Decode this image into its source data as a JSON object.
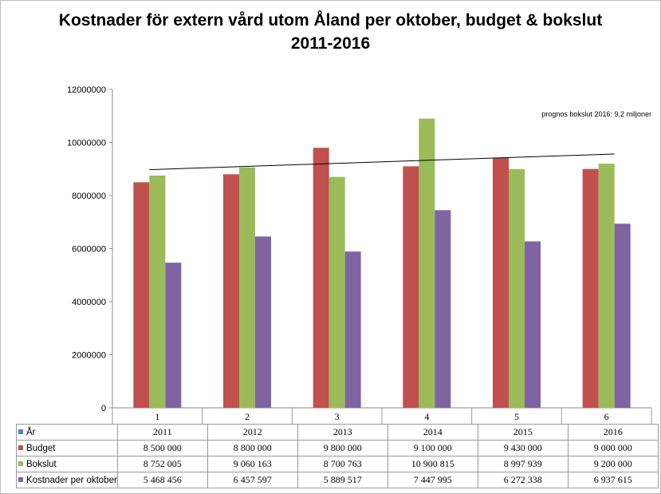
{
  "chart_data": {
    "type": "bar",
    "title_line1": "Kostnader för extern vård utom Åland per oktober, budget & bokslut",
    "title_line2": "2011-2016",
    "categories": [
      "1",
      "2",
      "3",
      "4",
      "5",
      "6"
    ],
    "years": [
      "2011",
      "2012",
      "2013",
      "2014",
      "2015",
      "2016"
    ],
    "year_series_name": "År",
    "series": [
      {
        "name": "Budget",
        "color": "#c0504d",
        "values": [
          8500000,
          8800000,
          9800000,
          9100000,
          9430000,
          9000000
        ],
        "labels": [
          "8 500 000",
          "8 800 000",
          "9 800 000",
          "9 100 000",
          "9 430 000",
          "9 000 000"
        ]
      },
      {
        "name": "Bokslut",
        "color": "#9bbb59",
        "values": [
          8752005,
          9060163,
          8700763,
          10900815,
          8997939,
          9200000
        ],
        "labels": [
          "8 752 005",
          "9 060 163",
          "8 700 763",
          "10 900 815",
          "8 997 939",
          "9 200 000"
        ]
      },
      {
        "name": "Kostnader per oktober",
        "color": "#8064a2",
        "values": [
          5468456,
          6457597,
          5889517,
          7447995,
          6272338,
          6937615
        ],
        "labels": [
          "5 468 456",
          "6 457 597",
          "5 889 517",
          "7 447 995",
          "6 272 338",
          "6 937 615"
        ]
      }
    ],
    "year_color": "#4f81bd",
    "yticks": [
      "0",
      "2000000",
      "4000000",
      "6000000",
      "8000000",
      "10000000",
      "12000000"
    ],
    "ylim": [
      0,
      12000000
    ],
    "trendline": {
      "series": "Bokslut",
      "start": 8975000,
      "end": 9565000
    },
    "annotation": "prognos bokslut 2016: 9,2 miljoner",
    "grid": false,
    "legend": "data-table"
  }
}
